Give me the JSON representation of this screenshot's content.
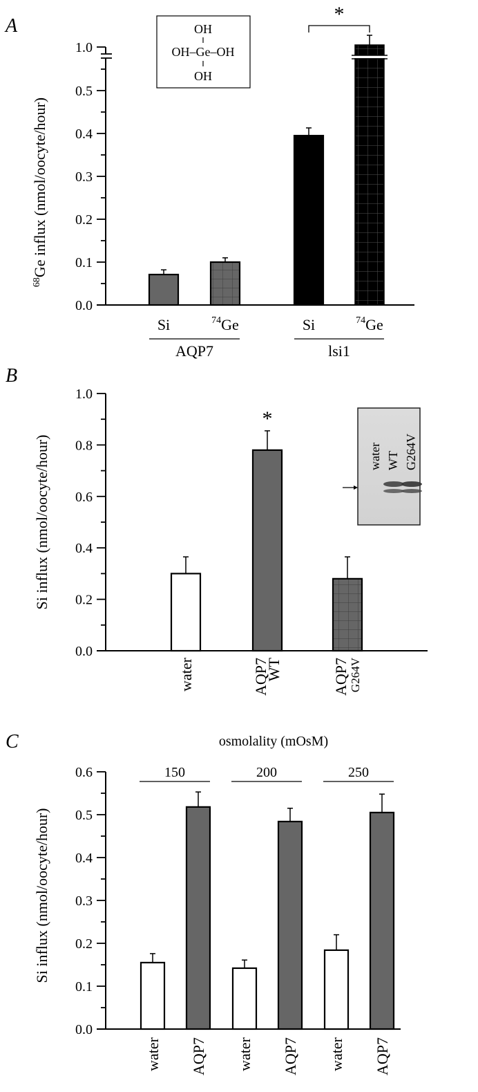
{
  "chart_data": [
    {
      "panel": "A",
      "type": "bar",
      "ylabel_sup": "68",
      "ylabel": "Ge influx (nmol/oocyte/hour)",
      "yticks": [
        "0.0",
        "0.1",
        "0.2",
        "0.3",
        "0.4",
        "0.5",
        "1.0"
      ],
      "ylim": [
        0,
        1.0
      ],
      "axis_break": "between 0.5 and 1.0",
      "inset": {
        "top": "OH",
        "middle": "OH–Ge–OH",
        "bottom": "OH"
      },
      "categories": [
        "Si",
        "74Ge",
        "Si",
        "74Ge"
      ],
      "category_sup": [
        "",
        "74",
        "",
        "74"
      ],
      "category_base": [
        "Si",
        "Ge",
        "Si",
        "Ge"
      ],
      "groups": [
        {
          "label": "AQP7",
          "members": [
            0,
            1
          ]
        },
        {
          "label": "lsi1",
          "members": [
            2,
            3
          ]
        }
      ],
      "values": [
        0.071,
        0.1,
        0.395,
        1.0
      ],
      "errors": [
        0.011,
        0.01,
        0.018,
        0.05
      ],
      "fills": [
        "solid-gray",
        "gray-grid",
        "solid-black",
        "black-grid"
      ],
      "significance": {
        "label": "*",
        "between": [
          2,
          3
        ]
      }
    },
    {
      "panel": "B",
      "type": "bar",
      "ylabel": "Si influx (nmol/oocyte/hour)",
      "yticks": [
        "0.0",
        "0.2",
        "0.4",
        "0.6",
        "0.8",
        "1.0"
      ],
      "ylim": [
        0,
        1.0
      ],
      "categories": [
        [
          "water"
        ],
        [
          "AQP7",
          "WT"
        ],
        [
          "AQP7",
          "G264V"
        ]
      ],
      "values": [
        0.3,
        0.78,
        0.28
      ],
      "errors": [
        0.065,
        0.075,
        0.085
      ],
      "fills": [
        "white",
        "solid-gray",
        "gray-grid"
      ],
      "significance": {
        "label": "*",
        "bar": 1
      },
      "blot_inset": {
        "lanes": [
          "water",
          "WT",
          "G264V"
        ],
        "arrow": "→"
      }
    },
    {
      "panel": "C",
      "type": "bar",
      "ylabel": "Si influx (nmol/oocyte/hour)",
      "yticks": [
        "0.0",
        "0.1",
        "0.2",
        "0.3",
        "0.4",
        "0.5",
        "0.6"
      ],
      "ylim": [
        0,
        0.6
      ],
      "title": "osmolality (mOsM)",
      "groups": [
        "150",
        "200",
        "250"
      ],
      "categories": [
        "water",
        "AQP7",
        "water",
        "AQP7",
        "water",
        "AQP7"
      ],
      "values": [
        0.155,
        0.518,
        0.142,
        0.484,
        0.184,
        0.505
      ],
      "errors": [
        0.021,
        0.035,
        0.019,
        0.031,
        0.036,
        0.043
      ],
      "fills": [
        "white",
        "solid-gray",
        "white",
        "solid-gray",
        "white",
        "solid-gray"
      ]
    }
  ],
  "colors": {
    "gray": "#666666",
    "black": "#000000",
    "white": "#ffffff",
    "blot_bg": "#d9d9d9"
  }
}
